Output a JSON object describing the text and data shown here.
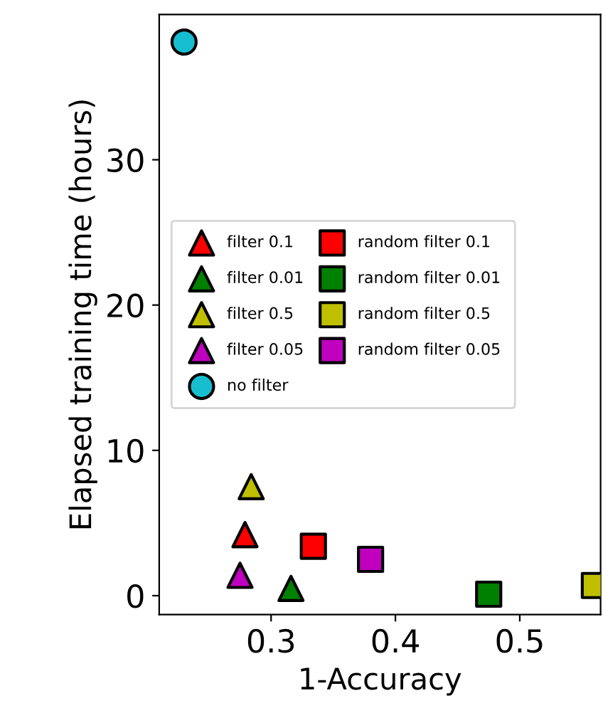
{
  "chart_data": {
    "type": "scatter",
    "xlabel": "1-Accuracy",
    "ylabel": "Elapsed training time (hours)",
    "xlim": [
      0.21,
      0.565
    ],
    "ylim": [
      -1.3,
      40
    ],
    "xticks": [
      0.3,
      0.4,
      0.5
    ],
    "yticks": [
      0,
      10,
      20,
      30
    ],
    "grid": false,
    "legend": "center left",
    "series": [
      {
        "name": "filter 0.1",
        "color": "#ff0000",
        "marker": "triangle",
        "x": [
          0.279
        ],
        "values": [
          4.2
        ]
      },
      {
        "name": "filter 0.01",
        "color": "#008000",
        "marker": "triangle",
        "x": [
          0.316
        ],
        "values": [
          0.5
        ]
      },
      {
        "name": "filter 0.5",
        "color": "#bfbf00",
        "marker": "triangle",
        "x": [
          0.284
        ],
        "values": [
          7.5
        ]
      },
      {
        "name": "filter 0.05",
        "color": "#bf00bf",
        "marker": "triangle",
        "x": [
          0.275
        ],
        "values": [
          1.4
        ]
      },
      {
        "name": "no filter",
        "color": "#17becf",
        "marker": "circle",
        "x": [
          0.23
        ],
        "values": [
          38.1
        ]
      },
      {
        "name": "random filter 0.1",
        "color": "#ff0000",
        "marker": "square",
        "x": [
          0.334
        ],
        "values": [
          3.4
        ]
      },
      {
        "name": "random filter 0.01",
        "color": "#008000",
        "marker": "square",
        "x": [
          0.475
        ],
        "values": [
          0.1
        ]
      },
      {
        "name": "random filter 0.5",
        "color": "#bfbf00",
        "marker": "square",
        "x": [
          0.56
        ],
        "values": [
          0.7
        ]
      },
      {
        "name": "random filter 0.05",
        "color": "#bf00bf",
        "marker": "square",
        "x": [
          0.38
        ],
        "values": [
          2.5
        ]
      }
    ]
  }
}
